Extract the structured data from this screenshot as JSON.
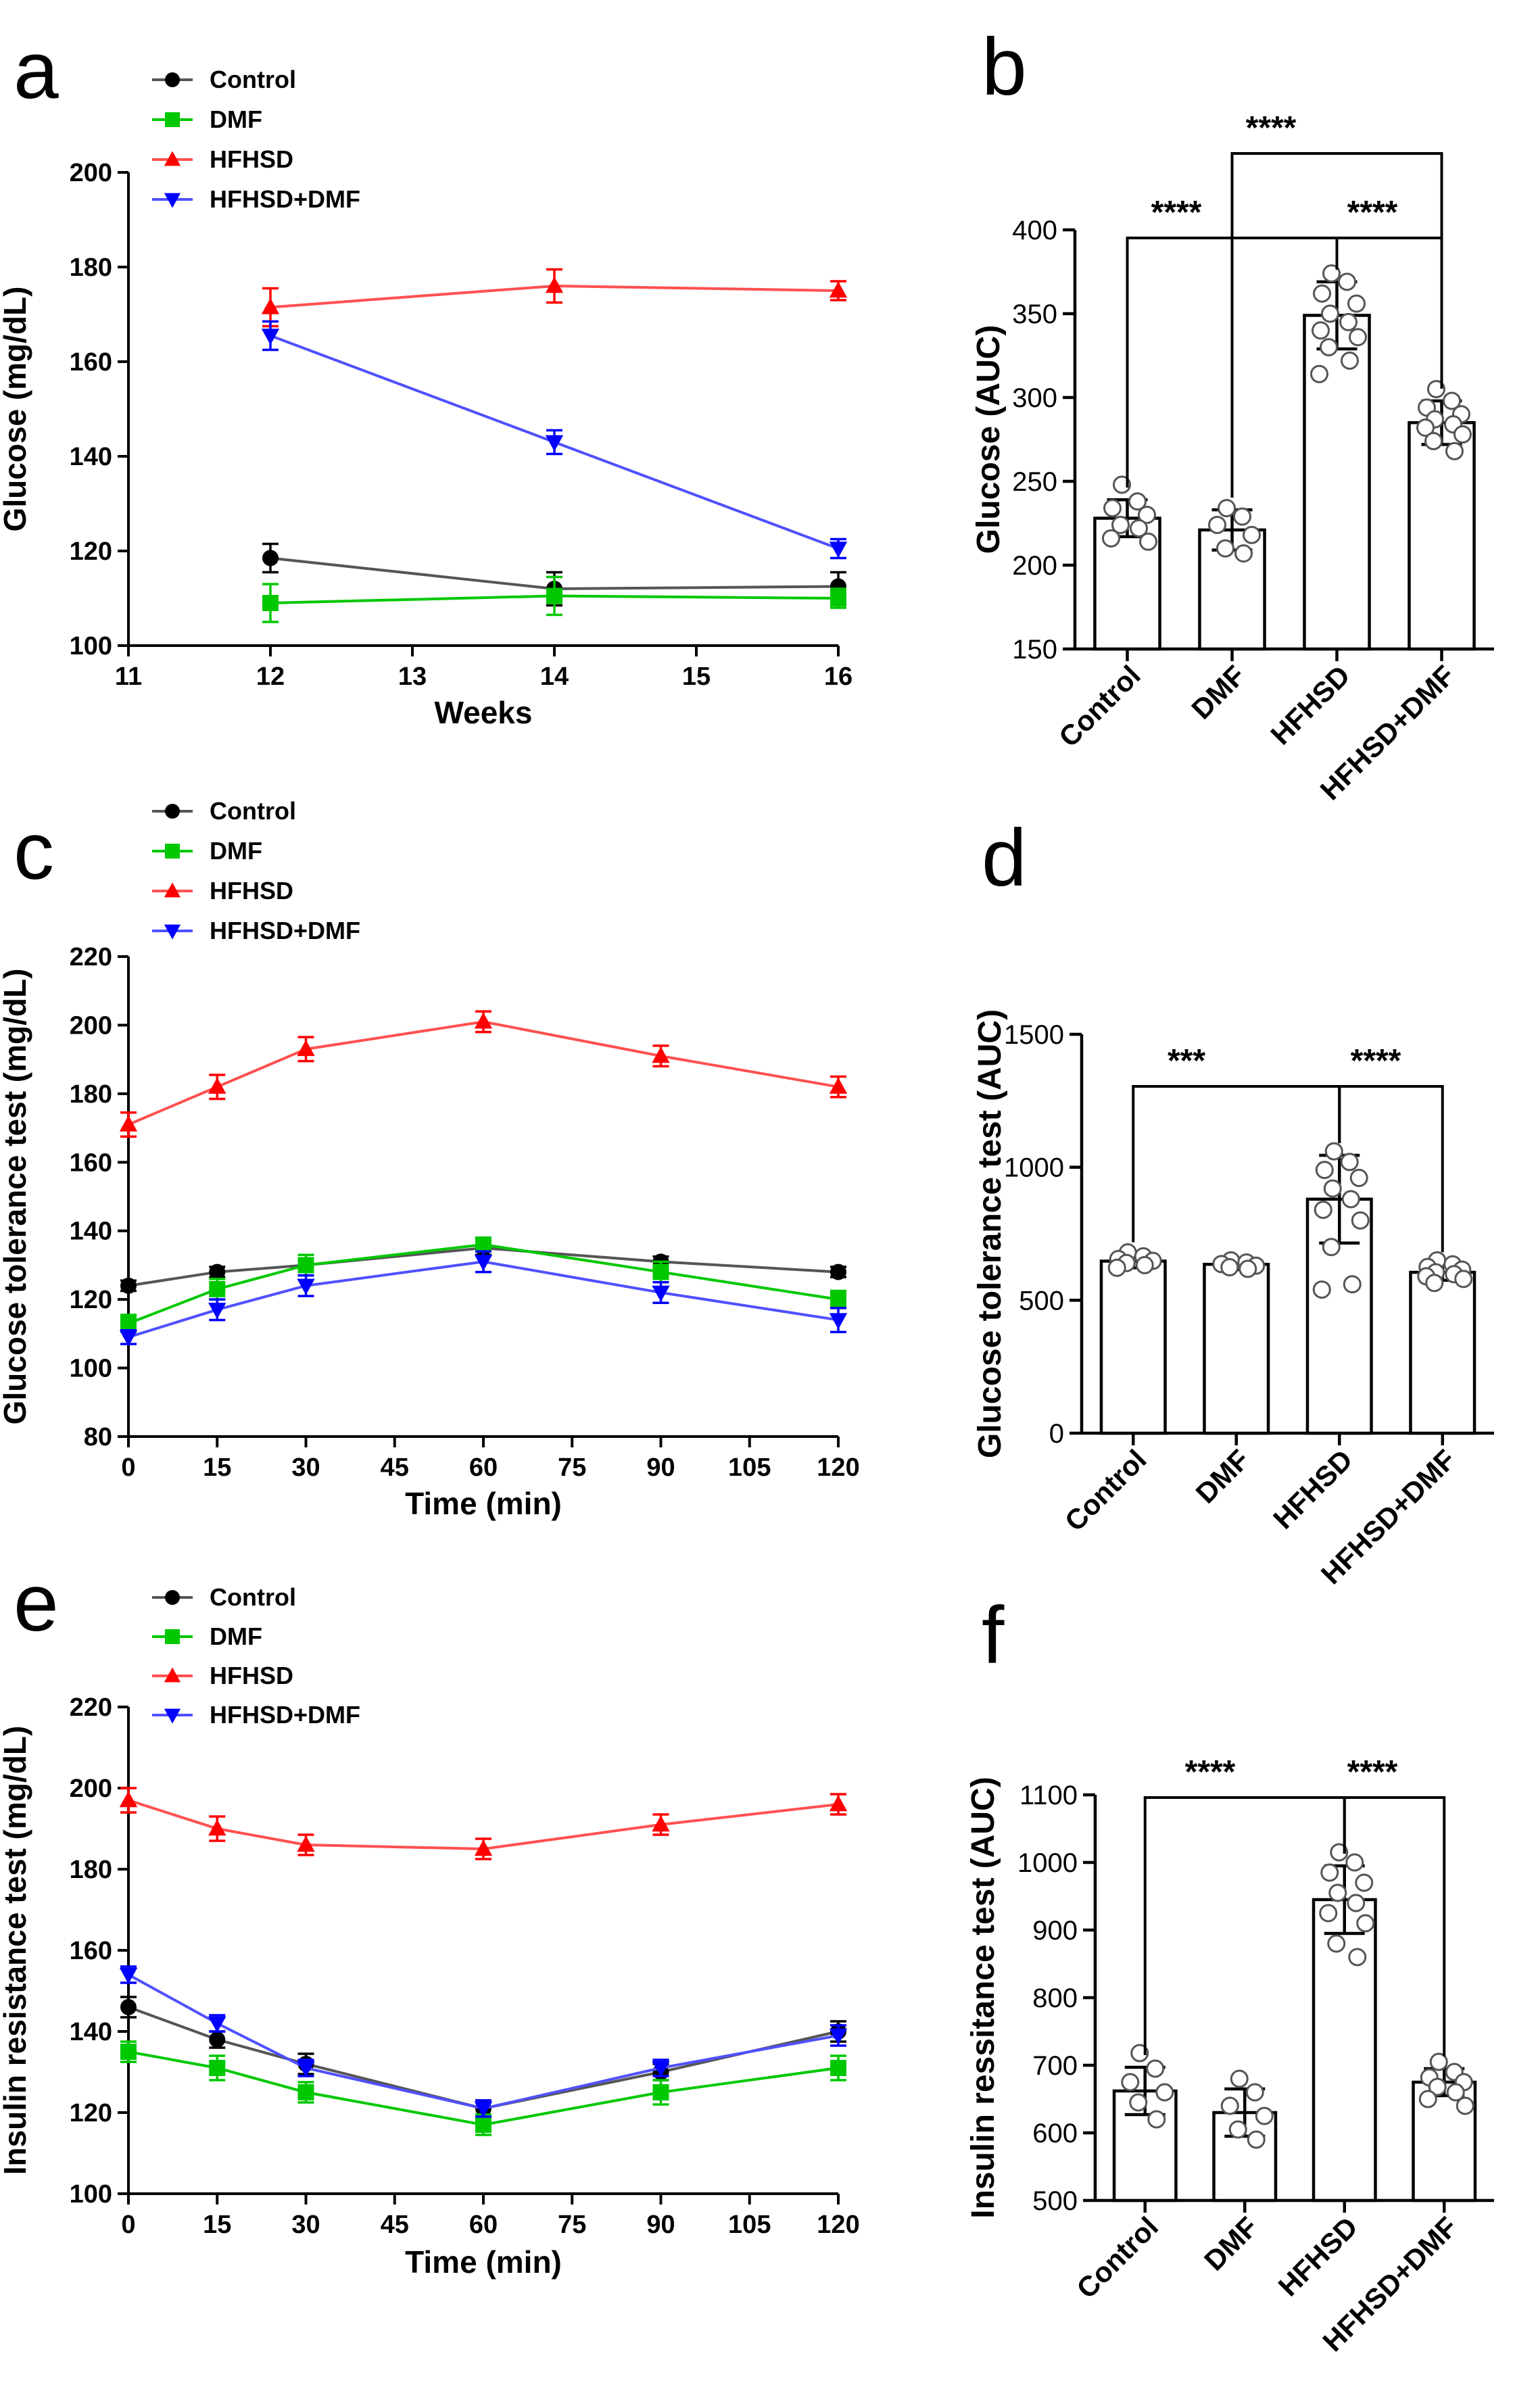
{
  "panels": [
    {
      "letter": "a",
      "chart_data": {
        "type": "line",
        "title": "",
        "xlabel": "Weeks",
        "ylabel": "Glucose (mg/dL)",
        "xlim": [
          11,
          16
        ],
        "ylim": [
          100,
          200
        ],
        "xticks": [
          11,
          12,
          13,
          14,
          15,
          16
        ],
        "yticks": [
          100,
          120,
          140,
          160,
          180,
          200
        ],
        "x": [
          12,
          14,
          16
        ],
        "series": [
          {
            "name": "Control",
            "color": "#000000",
            "marker": "circle",
            "line_color": "#555555",
            "values": [
              118.5,
              112,
              112.5
            ],
            "errors": [
              3,
              3.5,
              3
            ]
          },
          {
            "name": "DMF",
            "color": "#00c800",
            "marker": "square",
            "line_color": "#00c800",
            "values": [
              109,
              110.5,
              110
            ],
            "errors": [
              4,
              4,
              2
            ]
          },
          {
            "name": "HFHSD",
            "color": "#ff0000",
            "marker": "triangle-up",
            "line_color": "#ff5050",
            "values": [
              171.5,
              176,
              175
            ],
            "errors": [
              4,
              3.5,
              2
            ]
          },
          {
            "name": "HFHSD+DMF",
            "color": "#0000ff",
            "marker": "triangle-down",
            "line_color": "#5050ff",
            "values": [
              165.5,
              143,
              120.5
            ],
            "errors": [
              3,
              2.5,
              2
            ]
          }
        ]
      }
    },
    {
      "letter": "b",
      "chart_data": {
        "type": "bar",
        "xlabel": "",
        "ylabel": "Glucose (AUC)",
        "ylim": [
          150,
          400
        ],
        "yticks": [
          150,
          200,
          250,
          300,
          350,
          400
        ],
        "categories": [
          "Control",
          "DMF",
          "HFHSD",
          "HFHSD+DMF"
        ],
        "values": [
          228,
          221,
          349,
          285
        ],
        "errors": [
          11,
          12,
          20,
          13
        ],
        "points": [
          [
            248,
            238,
            234,
            230,
            224,
            222,
            216,
            214
          ],
          [
            234,
            229,
            224,
            218,
            210,
            207
          ],
          [
            374,
            369,
            362,
            356,
            350,
            345,
            340,
            336,
            330,
            322,
            314
          ],
          [
            305,
            298,
            294,
            290,
            287,
            284,
            282,
            278,
            274,
            268
          ]
        ],
        "significance": [
          {
            "from": 1,
            "to": 3,
            "label": "****"
          },
          {
            "from": 0,
            "to": 2,
            "label": "****"
          },
          {
            "from": 2,
            "to": 3,
            "label": "****"
          }
        ]
      }
    },
    {
      "letter": "c",
      "chart_data": {
        "type": "line",
        "title": "",
        "xlabel": "Time (min)",
        "ylabel": "Glucose tolerance test (mg/dL)",
        "xlim": [
          0,
          120
        ],
        "ylim": [
          80,
          220
        ],
        "xticks": [
          0,
          15,
          30,
          45,
          60,
          75,
          90,
          105,
          120
        ],
        "yticks": [
          80,
          100,
          120,
          140,
          160,
          180,
          200,
          220
        ],
        "x": [
          0,
          15,
          30,
          60,
          90,
          120
        ],
        "series": [
          {
            "name": "Control",
            "color": "#000000",
            "marker": "circle",
            "line_color": "#555555",
            "values": [
              124,
              128,
              130,
              135,
              131,
              128
            ],
            "errors": [
              1.5,
              1.5,
              2,
              2,
              1.5,
              1.5
            ]
          },
          {
            "name": "DMF",
            "color": "#00c800",
            "marker": "square",
            "line_color": "#00c800",
            "values": [
              113,
              123,
              130,
              136,
              128,
              120
            ],
            "errors": [
              2.5,
              3,
              3,
              2,
              3,
              2.5
            ]
          },
          {
            "name": "HFHSD",
            "color": "#ff0000",
            "marker": "triangle-up",
            "line_color": "#ff5050",
            "values": [
              171,
              182,
              193,
              201,
              191,
              182
            ],
            "errors": [
              3.5,
              3.5,
              3.5,
              3,
              3,
              3
            ]
          },
          {
            "name": "HFHSD+DMF",
            "color": "#0000ff",
            "marker": "triangle-down",
            "line_color": "#5050ff",
            "values": [
              109,
              117,
              124,
              131,
              122,
              114
            ],
            "errors": [
              2,
              3,
              3,
              3,
              3,
              3.5
            ]
          }
        ]
      }
    },
    {
      "letter": "d",
      "chart_data": {
        "type": "bar",
        "xlabel": "",
        "ylabel": "Glucose tolerance test (AUC)",
        "ylim": [
          0,
          1500
        ],
        "yticks": [
          0,
          500,
          1000,
          1500
        ],
        "categories": [
          "Control",
          "DMF",
          "HFHSD",
          "HFHSD+DMF"
        ],
        "values": [
          647,
          635,
          880,
          605
        ],
        "errors": [
          25,
          20,
          165,
          30
        ],
        "points": [
          [
            680,
            665,
            655,
            648,
            640,
            632,
            622
          ],
          [
            650,
            642,
            636,
            630,
            624,
            618
          ],
          [
            1060,
            1020,
            990,
            960,
            920,
            880,
            840,
            800,
            700,
            560,
            540
          ],
          [
            650,
            635,
            625,
            615,
            605,
            598,
            590,
            580,
            565
          ]
        ],
        "significance": [
          {
            "from": 0,
            "to": 2,
            "label": "***"
          },
          {
            "from": 2,
            "to": 3,
            "label": "****"
          }
        ]
      }
    },
    {
      "letter": "e",
      "chart_data": {
        "type": "line",
        "title": "",
        "xlabel": "Time (min)",
        "ylabel": "Insulin resistance test (mg/dL)",
        "xlim": [
          0,
          120
        ],
        "ylim": [
          100,
          220
        ],
        "xticks": [
          0,
          15,
          30,
          45,
          60,
          75,
          90,
          105,
          120
        ],
        "yticks": [
          100,
          120,
          140,
          160,
          180,
          200,
          220
        ],
        "x": [
          0,
          15,
          30,
          60,
          90,
          120
        ],
        "series": [
          {
            "name": "Control",
            "color": "#000000",
            "marker": "circle",
            "line_color": "#555555",
            "values": [
              146,
              138,
              132,
              121,
              130,
              140
            ],
            "errors": [
              2.5,
              2,
              2.5,
              2,
              2,
              2.5
            ]
          },
          {
            "name": "DMF",
            "color": "#00c800",
            "marker": "square",
            "line_color": "#00c800",
            "values": [
              135,
              131,
              125,
              117,
              125,
              131
            ],
            "errors": [
              2.5,
              3,
              2.5,
              2.5,
              3,
              3
            ]
          },
          {
            "name": "HFHSD",
            "color": "#ff0000",
            "marker": "triangle-up",
            "line_color": "#ff5050",
            "values": [
              197,
              190,
              186,
              185,
              191,
              196
            ],
            "errors": [
              3,
              3,
              2.5,
              2.5,
              2.5,
              2.5
            ]
          },
          {
            "name": "HFHSD+DMF",
            "color": "#0000ff",
            "marker": "triangle-down",
            "line_color": "#5050ff",
            "values": [
              154,
              142,
              131,
              121,
              131,
              139
            ],
            "errors": [
              2,
              2,
              2,
              2,
              2,
              2.5
            ]
          }
        ]
      }
    },
    {
      "letter": "f",
      "chart_data": {
        "type": "bar",
        "xlabel": "",
        "ylabel": "Insulin ressitance test (AUC)",
        "ylim": [
          500,
          1100
        ],
        "yticks": [
          500,
          600,
          700,
          800,
          900,
          1000,
          1100
        ],
        "categories": [
          "Control",
          "DMF",
          "HFHSD",
          "HFHSD+DMF"
        ],
        "values": [
          662,
          630,
          945,
          675
        ],
        "errors": [
          35,
          35,
          50,
          20
        ],
        "points": [
          [
            718,
            695,
            675,
            660,
            645,
            620
          ],
          [
            680,
            660,
            640,
            625,
            605,
            590
          ],
          [
            1015,
            1000,
            985,
            970,
            955,
            940,
            925,
            910,
            880,
            860
          ],
          [
            705,
            690,
            682,
            675,
            668,
            660,
            650,
            640
          ]
        ],
        "significance": [
          {
            "from": 0,
            "to": 2,
            "label": "****"
          },
          {
            "from": 2,
            "to": 3,
            "label": "****"
          }
        ]
      }
    }
  ]
}
